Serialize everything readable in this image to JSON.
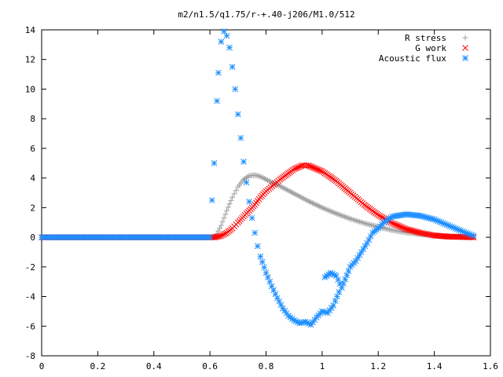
{
  "chart_data": {
    "type": "scatter",
    "title": "m2/n1.5/q1.75/r-+.40-j206/M1.0/512",
    "xlabel": "",
    "ylabel": "",
    "xlim": [
      0,
      1.6
    ],
    "ylim": [
      -8,
      14
    ],
    "x_ticks": [
      0,
      0.2,
      0.4,
      0.6,
      0.8,
      1,
      1.2,
      1.4,
      1.6
    ],
    "y_ticks": [
      -8,
      -6,
      -4,
      -2,
      0,
      2,
      4,
      6,
      8,
      10,
      12,
      14
    ],
    "x_tick_labels": [
      "0",
      "0.2",
      "0.4",
      "0.6",
      "0.8",
      "1",
      "1.2",
      "1.4",
      "1.6"
    ],
    "y_tick_labels": [
      "-8",
      "-6",
      "-4",
      "-2",
      "0",
      "2",
      "4",
      "6",
      "8",
      "10",
      "12",
      "14"
    ],
    "grid": false,
    "legend_position": "top-right",
    "series": [
      {
        "name": "R stress",
        "marker": "plus",
        "color": "#a0a0a0",
        "points": [
          [
            0.0,
            0
          ],
          [
            0.1,
            0
          ],
          [
            0.2,
            0
          ],
          [
            0.3,
            0
          ],
          [
            0.4,
            0
          ],
          [
            0.5,
            0
          ],
          [
            0.6,
            0
          ],
          [
            0.62,
            0.05
          ],
          [
            0.64,
            0.8
          ],
          [
            0.66,
            1.8
          ],
          [
            0.68,
            2.7
          ],
          [
            0.7,
            3.4
          ],
          [
            0.72,
            3.9
          ],
          [
            0.74,
            4.15
          ],
          [
            0.76,
            4.2
          ],
          [
            0.78,
            4.1
          ],
          [
            0.8,
            3.9
          ],
          [
            0.85,
            3.45
          ],
          [
            0.9,
            2.95
          ],
          [
            0.95,
            2.45
          ],
          [
            1.0,
            2.0
          ],
          [
            1.05,
            1.6
          ],
          [
            1.1,
            1.25
          ],
          [
            1.15,
            0.95
          ],
          [
            1.2,
            0.7
          ],
          [
            1.25,
            0.48
          ],
          [
            1.3,
            0.32
          ],
          [
            1.35,
            0.2
          ],
          [
            1.4,
            0.12
          ],
          [
            1.45,
            0.07
          ],
          [
            1.5,
            0.03
          ],
          [
            1.54,
            0.0
          ]
        ]
      },
      {
        "name": "G work",
        "marker": "cross",
        "color": "#ff0000",
        "points": [
          [
            0.0,
            0
          ],
          [
            0.1,
            0
          ],
          [
            0.2,
            0
          ],
          [
            0.3,
            0
          ],
          [
            0.4,
            0
          ],
          [
            0.5,
            0
          ],
          [
            0.6,
            0
          ],
          [
            0.62,
            0.0
          ],
          [
            0.64,
            0.1
          ],
          [
            0.66,
            0.3
          ],
          [
            0.68,
            0.6
          ],
          [
            0.7,
            1.0
          ],
          [
            0.72,
            1.4
          ],
          [
            0.74,
            1.8
          ],
          [
            0.76,
            2.2
          ],
          [
            0.78,
            2.7
          ],
          [
            0.8,
            3.1
          ],
          [
            0.85,
            3.9
          ],
          [
            0.9,
            4.6
          ],
          [
            0.93,
            4.85
          ],
          [
            0.95,
            4.85
          ],
          [
            1.0,
            4.45
          ],
          [
            1.05,
            3.8
          ],
          [
            1.1,
            3.0
          ],
          [
            1.15,
            2.2
          ],
          [
            1.2,
            1.5
          ],
          [
            1.25,
            0.95
          ],
          [
            1.3,
            0.55
          ],
          [
            1.35,
            0.3
          ],
          [
            1.4,
            0.12
          ],
          [
            1.45,
            0.04
          ],
          [
            1.5,
            0.02
          ],
          [
            1.54,
            0.0
          ]
        ]
      },
      {
        "name": "Acoustic flux",
        "marker": "star",
        "color": "#1e8fff",
        "points": [
          [
            0.0,
            0
          ],
          [
            0.1,
            0
          ],
          [
            0.2,
            0
          ],
          [
            0.3,
            0
          ],
          [
            0.4,
            0
          ],
          [
            0.5,
            0
          ],
          [
            0.6,
            0
          ],
          [
            0.615,
            5.0
          ],
          [
            0.625,
            9.2
          ],
          [
            0.63,
            11.1
          ],
          [
            0.64,
            13.2
          ],
          [
            0.65,
            13.9
          ],
          [
            0.66,
            13.6
          ],
          [
            0.67,
            12.8
          ],
          [
            0.68,
            11.5
          ],
          [
            0.69,
            10.0
          ],
          [
            0.7,
            8.3
          ],
          [
            0.71,
            6.7
          ],
          [
            0.72,
            5.1
          ],
          [
            0.73,
            3.7
          ],
          [
            0.74,
            2.4
          ],
          [
            0.75,
            1.3
          ],
          [
            0.76,
            0.3
          ],
          [
            0.77,
            -0.6
          ],
          [
            0.78,
            -1.3
          ],
          [
            0.8,
            -2.4
          ],
          [
            0.82,
            -3.3
          ],
          [
            0.84,
            -4.1
          ],
          [
            0.86,
            -4.8
          ],
          [
            0.88,
            -5.3
          ],
          [
            0.9,
            -5.6
          ],
          [
            0.92,
            -5.8
          ],
          [
            0.94,
            -5.7
          ],
          [
            0.96,
            -5.9
          ],
          [
            0.98,
            -5.4
          ],
          [
            1.0,
            -5.0
          ],
          [
            1.02,
            -5.1
          ],
          [
            1.04,
            -4.6
          ],
          [
            1.06,
            -3.7
          ],
          [
            1.01,
            -2.7
          ],
          [
            1.03,
            -2.4
          ],
          [
            1.05,
            -2.6
          ],
          [
            1.07,
            -3.4
          ],
          [
            1.1,
            -2.0
          ],
          [
            1.12,
            -1.6
          ],
          [
            1.14,
            -1.0
          ],
          [
            1.16,
            -0.4
          ],
          [
            1.18,
            0.3
          ],
          [
            1.2,
            0.6
          ],
          [
            1.22,
            1.0
          ],
          [
            1.25,
            1.4
          ],
          [
            1.3,
            1.55
          ],
          [
            1.35,
            1.45
          ],
          [
            1.4,
            1.2
          ],
          [
            1.45,
            0.8
          ],
          [
            1.5,
            0.4
          ],
          [
            1.54,
            0.1
          ]
        ]
      }
    ]
  }
}
